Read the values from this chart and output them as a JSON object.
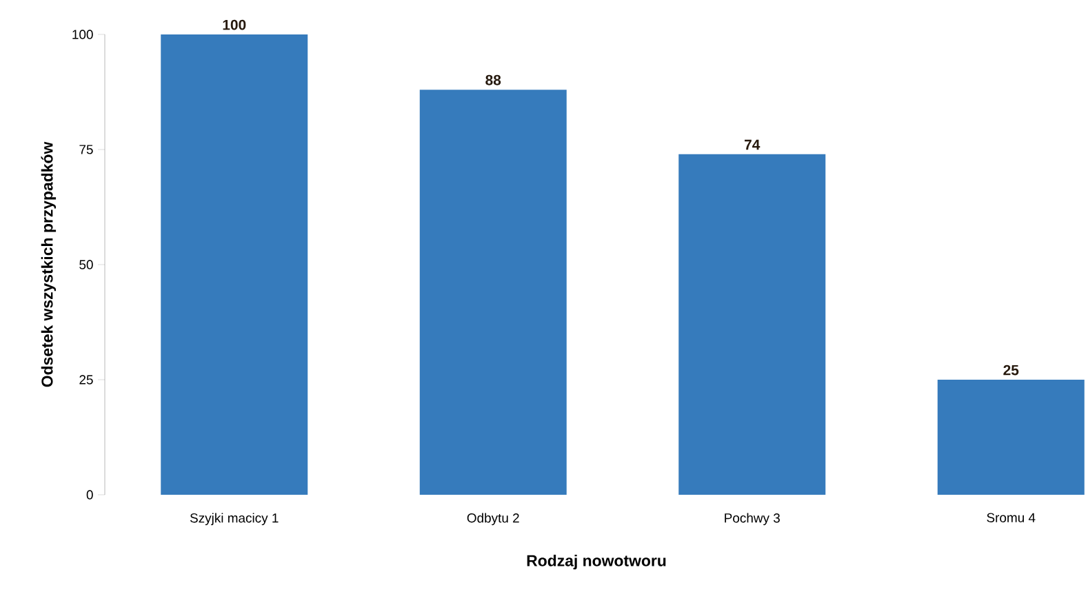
{
  "chart_data": {
    "type": "bar",
    "xlabel": "Rodzaj nowotworu",
    "ylabel": "Odsetek wszystkich przypadków",
    "categories": [
      "Szyjki  macicy       1",
      "Odbytu  2",
      "Pochwy     3",
      "Sromu       4"
    ],
    "values": [
      100,
      88,
      74,
      25
    ],
    "color": "#367bbc",
    "ylim": [
      0,
      100
    ],
    "yticks": [
      0,
      25,
      50,
      75,
      100
    ],
    "data_labels": true
  }
}
